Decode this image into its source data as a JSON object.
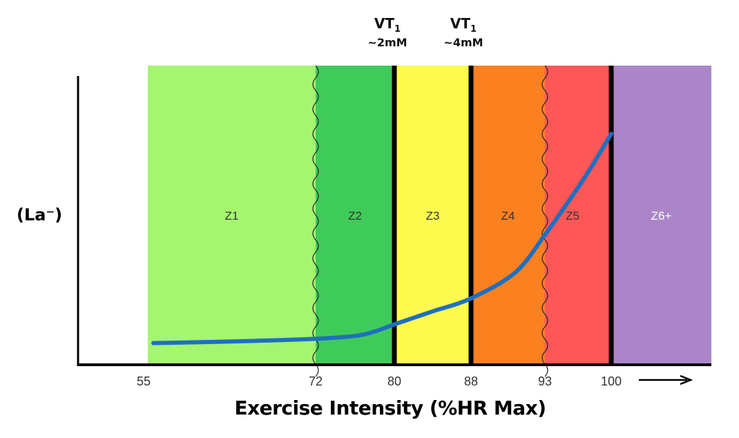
{
  "chart_data": {
    "type": "line",
    "title": "",
    "xlabel": "Exercise Intensity (%HR Max)",
    "ylabel": "(La⁻)",
    "x_ticks": [
      55,
      72,
      80,
      88,
      93,
      100
    ],
    "x_axis_arrow": true,
    "grid": false,
    "zones": [
      {
        "label": "Z1",
        "from": 55,
        "to": 72,
        "color": "#a4f56f",
        "label_color": "#333333"
      },
      {
        "label": "Z2",
        "from": 72,
        "to": 80,
        "color": "#3fcb5a",
        "label_color": "#333333"
      },
      {
        "label": "Z3",
        "from": 80,
        "to": 88,
        "color": "#fefb4f",
        "label_color": "#333333"
      },
      {
        "label": "Z4",
        "from": 88,
        "to": 93,
        "color": "#fb8120",
        "label_color": "#333333"
      },
      {
        "label": "Z5",
        "from": 93,
        "to": 100,
        "color": "#fe5757",
        "label_color": "#333333"
      },
      {
        "label": "Z6+",
        "from": 100,
        "to": null,
        "color": "#aa86c8",
        "label_color": "#ffffff"
      }
    ],
    "thresholds": [
      {
        "x": 80,
        "label": "VT",
        "subscript": "1",
        "note": "~2mM",
        "style": "thick"
      },
      {
        "x": 88,
        "label": "VT",
        "subscript": "1",
        "note": "~4mM",
        "style": "thick"
      },
      {
        "x": 100,
        "style": "thick"
      },
      {
        "x": 72,
        "style": "wavy"
      },
      {
        "x": 93,
        "style": "wavy"
      }
    ],
    "series": [
      {
        "color": "#1f6fbf",
        "x": [
          55,
          65,
          72,
          76,
          78,
          80,
          84,
          88,
          91,
          93,
          96,
          98,
          100
        ],
        "y": [
          0.075,
          0.082,
          0.09,
          0.1,
          0.115,
          0.14,
          0.185,
          0.23,
          0.32,
          0.45,
          0.59,
          0.69,
          0.8
        ]
      }
    ],
    "y_scale": "relative (no ticks)"
  }
}
